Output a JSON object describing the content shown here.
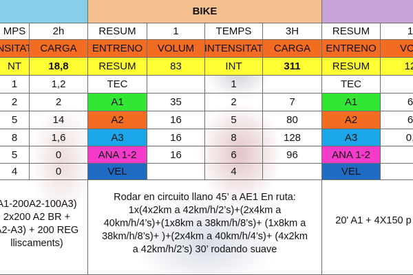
{
  "header": {
    "bike_title": "BIKE"
  },
  "colors": {
    "swim_header": "#85cfe8",
    "bike_header": "#f7c08f",
    "run_header": "#c8a2d8",
    "orange": "#f36c21",
    "yellow": "#fefe33",
    "green": "#33e633",
    "orange_a2": "#f36c21",
    "blue_a3": "#1aa6e8",
    "magenta": "#f33ac8",
    "vel_blue": "#1f6bc4"
  },
  "left_block": {
    "rows": [
      [
        "MPS",
        "2h"
      ],
      [
        "NSITAT",
        "CARGA"
      ],
      [
        "NT",
        "18,8"
      ],
      [
        "1",
        "1,2"
      ],
      [
        "2",
        "2"
      ],
      [
        "5",
        "14"
      ],
      [
        "8",
        "1,6"
      ],
      [
        "5",
        "0"
      ],
      [
        "4",
        "0"
      ]
    ],
    "description": [
      "A1-200A2-100A3)",
      "2x200 A2 BR +",
      "A2-A3) + 200 REG",
      "lliscaments)"
    ]
  },
  "bike_block": {
    "rows": [
      [
        "RESUM",
        "1",
        "TEMPS",
        "3H"
      ],
      [
        "ENTRENO",
        "VOLUM",
        "INTENSITAT",
        "CARGA"
      ],
      [
        "RESUM",
        "83",
        "INT",
        "311"
      ],
      [
        "TEC",
        "",
        "1",
        ""
      ],
      [
        "A1",
        "35",
        "2",
        "7"
      ],
      [
        "A2",
        "16",
        "5",
        "80"
      ],
      [
        "A3",
        "16",
        "8",
        "128"
      ],
      [
        "ANA 1-2",
        "16",
        "6",
        "96"
      ],
      [
        "VEL",
        "",
        "4",
        ""
      ]
    ],
    "description": [
      "Rodar en circuito llano 45’ a AE1 En ruta:",
      "1x(4x2km a 42km/h/2’s)+(2x4km a",
      "40km/h/4’s)+(1x8km a 38km/h/8’s)+ (1x8km a",
      "38km/h/8’s)+ )+(2x4km a 40km/h/4’s)+ (4x2km",
      "a 42km/h/2’s) 30’ rodando suave"
    ]
  },
  "run_block": {
    "rows": [
      [
        "RESUM",
        "1"
      ],
      [
        "ENTRENO",
        "VOL"
      ],
      [
        "RESUM",
        "12"
      ],
      [
        "TEC",
        ""
      ],
      [
        "A1",
        "6"
      ],
      [
        "A2",
        "6"
      ],
      [
        "A3",
        "0,"
      ],
      [
        "ANA 1-2",
        ""
      ],
      [
        "VEL",
        ""
      ]
    ],
    "description": [
      "20' A1 +  4X150 p"
    ]
  }
}
